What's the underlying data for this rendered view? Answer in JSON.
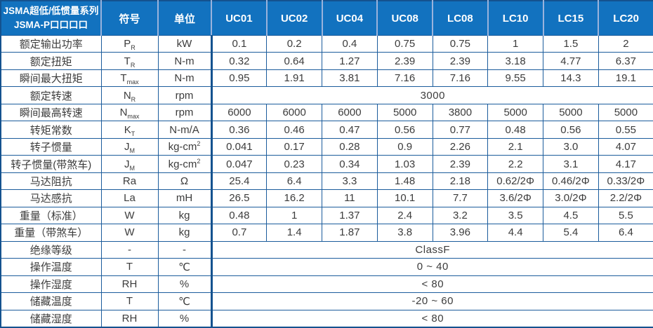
{
  "table": {
    "title_line1": "JSMA超低/低惯量系列",
    "title_line2": "JSMA-P口口口口",
    "symbol_header": "符号",
    "unit_header": "单位",
    "models": [
      "UC01",
      "UC02",
      "UC04",
      "UC08",
      "LC08",
      "LC10",
      "LC15",
      "LC20"
    ],
    "rows": [
      {
        "label": "额定输出功率",
        "symbol": "P",
        "symbol_sub": "R",
        "unit": "kW",
        "values": [
          "0.1",
          "0.2",
          "0.4",
          "0.75",
          "0.75",
          "1",
          "1.5",
          "2"
        ]
      },
      {
        "label": "额定扭矩",
        "symbol": "T",
        "symbol_sub": "R",
        "unit": "N-m",
        "values": [
          "0.32",
          "0.64",
          "1.27",
          "2.39",
          "2.39",
          "3.18",
          "4.77",
          "6.37"
        ]
      },
      {
        "label": "瞬间最大扭矩",
        "symbol": "T",
        "symbol_sub": "max",
        "unit": "N-m",
        "values": [
          "0.95",
          "1.91",
          "3.81",
          "7.16",
          "7.16",
          "9.55",
          "14.3",
          "19.1"
        ]
      },
      {
        "label": "额定转速",
        "symbol": "N",
        "symbol_sub": "R",
        "unit": "rpm",
        "merged": "3000"
      },
      {
        "label": "瞬间最高转速",
        "symbol": "N",
        "symbol_sub": "max",
        "unit": "rpm",
        "values": [
          "6000",
          "6000",
          "6000",
          "5000",
          "3800",
          "5000",
          "5000",
          "5000"
        ]
      },
      {
        "label": "转矩常数",
        "symbol": "K",
        "symbol_sub": "T",
        "unit": "N-m/A",
        "values": [
          "0.36",
          "0.46",
          "0.47",
          "0.56",
          "0.77",
          "0.48",
          "0.56",
          "0.55"
        ]
      },
      {
        "label": "转子惯量",
        "symbol": "J",
        "symbol_sub": "M",
        "unit": "kg-cm",
        "unit_sup": "2",
        "values": [
          "0.041",
          "0.17",
          "0.28",
          "0.9",
          "2.26",
          "2.1",
          "3.0",
          "4.07"
        ]
      },
      {
        "label": "转子惯量(带煞车)",
        "symbol": "J",
        "symbol_sub": "M",
        "unit": "kg-cm",
        "unit_sup": "2",
        "values": [
          "0.047",
          "0.23",
          "0.34",
          "1.03",
          "2.39",
          "2.2",
          "3.1",
          "4.17"
        ]
      },
      {
        "label": "马达阻抗",
        "symbol": "Ra",
        "unit": "Ω",
        "values": [
          "25.4",
          "6.4",
          "3.3",
          "1.48",
          "2.18",
          "0.62/2Φ",
          "0.46/2Φ",
          "0.33/2Φ"
        ]
      },
      {
        "label": "马达感抗",
        "symbol": "La",
        "unit": "mH",
        "values": [
          "26.5",
          "16.2",
          "11",
          "10.1",
          "7.7",
          "3.6/2Φ",
          "3.0/2Φ",
          "2.2/2Φ"
        ]
      },
      {
        "label": "重量（标准）",
        "symbol": "W",
        "unit": "kg",
        "values": [
          "0.48",
          "1",
          "1.37",
          "2.4",
          "3.2",
          "3.5",
          "4.5",
          "5.5"
        ]
      },
      {
        "label": "重量（带煞车）",
        "symbol": "W",
        "unit": "kg",
        "values": [
          "0.7",
          "1.4",
          "1.87",
          "3.8",
          "3.96",
          "4.4",
          "5.4",
          "6.4"
        ]
      },
      {
        "label": "绝缘等级",
        "symbol": "-",
        "unit": "-",
        "merged": "ClassF"
      },
      {
        "label": "操作温度",
        "symbol": "T",
        "unit": "℃",
        "merged": "0 ~ 40"
      },
      {
        "label": "操作湿度",
        "symbol": "RH",
        "unit": "%",
        "merged": "< 80"
      },
      {
        "label": "储藏温度",
        "symbol": "T",
        "unit": "℃",
        "merged": "-20 ~ 60"
      },
      {
        "label": "储藏湿度",
        "symbol": "RH",
        "unit": "%",
        "merged": "< 80"
      }
    ],
    "colors": {
      "header_bg": "#1272BF",
      "header_divider": "#9AB3DC",
      "grid": "#1B5C9C",
      "grid_dark": "#14528F",
      "text": "#3C3C3C"
    }
  }
}
